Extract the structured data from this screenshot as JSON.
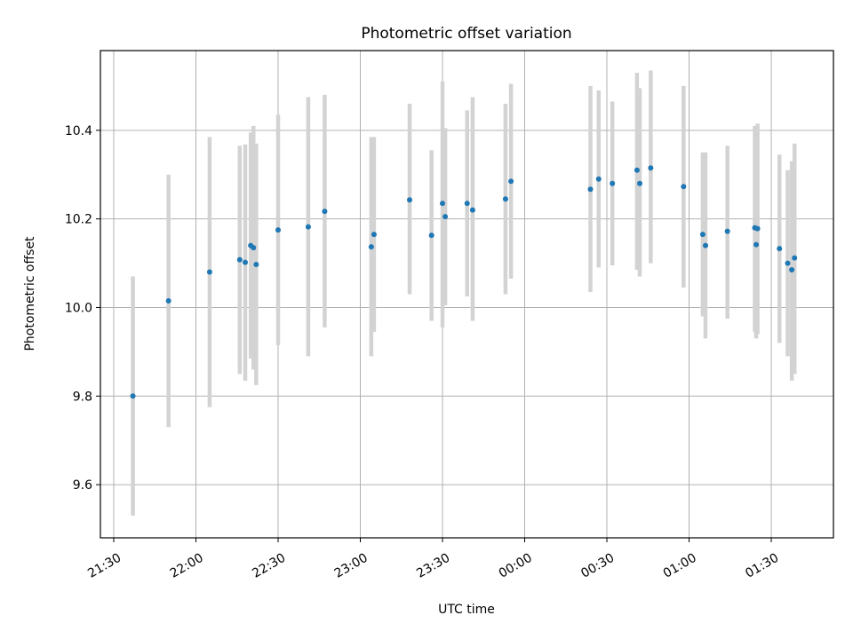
{
  "chart_data": {
    "type": "scatter",
    "title": "Photometric offset variation",
    "xlabel": "UTC time",
    "ylabel": "Photometric offset",
    "grid": true,
    "x_axis": {
      "kind": "time",
      "range": [
        "21:25",
        "01:51"
      ],
      "ticks": [
        "21:30",
        "22:00",
        "22:30",
        "23:00",
        "23:30",
        "00:00",
        "00:30",
        "01:00",
        "01:30"
      ],
      "tick_minutes_after_2130": [
        0,
        30,
        60,
        90,
        120,
        150,
        180,
        210,
        240
      ]
    },
    "y_axis": {
      "range": [
        9.48,
        10.58
      ],
      "ticks": [
        9.6,
        9.8,
        10.0,
        10.2,
        10.4
      ],
      "tick_labels": [
        "9.6",
        "9.8",
        "10.0",
        "10.2",
        "10.4"
      ]
    },
    "colors": {
      "points": "#1f77b4",
      "errorbars": "#d3d3d3"
    },
    "points": [
      {
        "t": "21:37",
        "y": 9.8,
        "lo": 9.53,
        "hi": 10.07
      },
      {
        "t": "21:50",
        "y": 10.015,
        "lo": 9.73,
        "hi": 10.3
      },
      {
        "t": "22:05",
        "y": 10.08,
        "lo": 9.775,
        "hi": 10.385
      },
      {
        "t": "22:16",
        "y": 10.108,
        "lo": 9.85,
        "hi": 10.365
      },
      {
        "t": "22:18",
        "y": 10.102,
        "lo": 9.835,
        "hi": 10.368
      },
      {
        "t": "22:20",
        "y": 10.14,
        "lo": 9.885,
        "hi": 10.395
      },
      {
        "t": "22:21",
        "y": 10.135,
        "lo": 9.86,
        "hi": 10.41
      },
      {
        "t": "22:22",
        "y": 10.097,
        "lo": 9.825,
        "hi": 10.37
      },
      {
        "t": "22:30",
        "y": 10.175,
        "lo": 9.915,
        "hi": 10.435
      },
      {
        "t": "22:41",
        "y": 10.182,
        "lo": 9.89,
        "hi": 10.475
      },
      {
        "t": "22:47",
        "y": 10.217,
        "lo": 9.955,
        "hi": 10.48
      },
      {
        "t": "23:04",
        "y": 10.137,
        "lo": 9.89,
        "hi": 10.385
      },
      {
        "t": "23:05",
        "y": 10.165,
        "lo": 9.945,
        "hi": 10.385
      },
      {
        "t": "23:18",
        "y": 10.243,
        "lo": 10.03,
        "hi": 10.46
      },
      {
        "t": "23:26",
        "y": 10.163,
        "lo": 9.97,
        "hi": 10.355
      },
      {
        "t": "23:30",
        "y": 10.235,
        "lo": 9.955,
        "hi": 10.51
      },
      {
        "t": "23:31",
        "y": 10.205,
        "lo": 10.005,
        "hi": 10.405
      },
      {
        "t": "23:39",
        "y": 10.235,
        "lo": 10.025,
        "hi": 10.445
      },
      {
        "t": "23:41",
        "y": 10.22,
        "lo": 9.97,
        "hi": 10.475
      },
      {
        "t": "23:53",
        "y": 10.245,
        "lo": 10.03,
        "hi": 10.46
      },
      {
        "t": "23:55",
        "y": 10.285,
        "lo": 10.065,
        "hi": 10.505
      },
      {
        "t": "00:24",
        "y": 10.267,
        "lo": 10.035,
        "hi": 10.5
      },
      {
        "t": "00:27",
        "y": 10.29,
        "lo": 10.09,
        "hi": 10.49
      },
      {
        "t": "00:32",
        "y": 10.28,
        "lo": 10.095,
        "hi": 10.465
      },
      {
        "t": "00:41",
        "y": 10.31,
        "lo": 10.085,
        "hi": 10.53
      },
      {
        "t": "00:42",
        "y": 10.28,
        "lo": 10.07,
        "hi": 10.495
      },
      {
        "t": "00:46",
        "y": 10.315,
        "lo": 10.1,
        "hi": 10.535
      },
      {
        "t": "00:58",
        "y": 10.273,
        "lo": 10.045,
        "hi": 10.5
      },
      {
        "t": "01:05",
        "y": 10.165,
        "lo": 9.98,
        "hi": 10.35
      },
      {
        "t": "01:06",
        "y": 10.14,
        "lo": 9.93,
        "hi": 10.35
      },
      {
        "t": "01:14",
        "y": 10.172,
        "lo": 9.975,
        "hi": 10.365
      },
      {
        "t": "01:24",
        "y": 10.18,
        "lo": 9.945,
        "hi": 10.41
      },
      {
        "t": "01:24:30",
        "y": 10.142,
        "lo": 9.93,
        "hi": 10.41
      },
      {
        "t": "01:25",
        "y": 10.178,
        "lo": 9.94,
        "hi": 10.415
      },
      {
        "t": "01:33",
        "y": 10.133,
        "lo": 9.92,
        "hi": 10.345
      },
      {
        "t": "01:36",
        "y": 10.1,
        "lo": 9.89,
        "hi": 10.31
      },
      {
        "t": "01:37:30",
        "y": 10.085,
        "lo": 9.835,
        "hi": 10.33
      },
      {
        "t": "01:38:30",
        "y": 10.112,
        "lo": 9.85,
        "hi": 10.37
      }
    ]
  }
}
